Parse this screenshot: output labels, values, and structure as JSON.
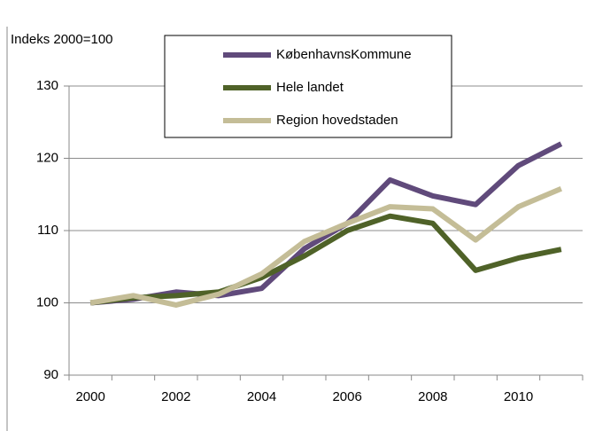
{
  "chart_data": {
    "type": "line",
    "y_label": "Indeks 2000=100",
    "categories": [
      "2000",
      null,
      "2002",
      null,
      "2004",
      null,
      "2006",
      null,
      "2008",
      null,
      "2010",
      null
    ],
    "series": [
      {
        "name": "KøbenhavnsKommune",
        "color": "#604a7b",
        "values": [
          100,
          100.5,
          101.5,
          101,
          102,
          107.5,
          111,
          117,
          114.8,
          113.6,
          119,
          122
        ]
      },
      {
        "name": "Hele landet",
        "color": "#4f6228",
        "values": [
          100,
          100.7,
          101,
          101.5,
          103.5,
          106.5,
          110,
          112,
          111,
          104.5,
          106.2,
          107.4
        ]
      },
      {
        "name": "Region hovedstaden",
        "color": "#c4bd97",
        "values": [
          100,
          101,
          99.7,
          101.2,
          104,
          108.5,
          111,
          113.3,
          113,
          108.7,
          113.3,
          115.8
        ]
      }
    ],
    "ylim": [
      90,
      130
    ],
    "yticks": [
      90,
      100,
      110,
      120,
      130
    ],
    "grid": true
  }
}
